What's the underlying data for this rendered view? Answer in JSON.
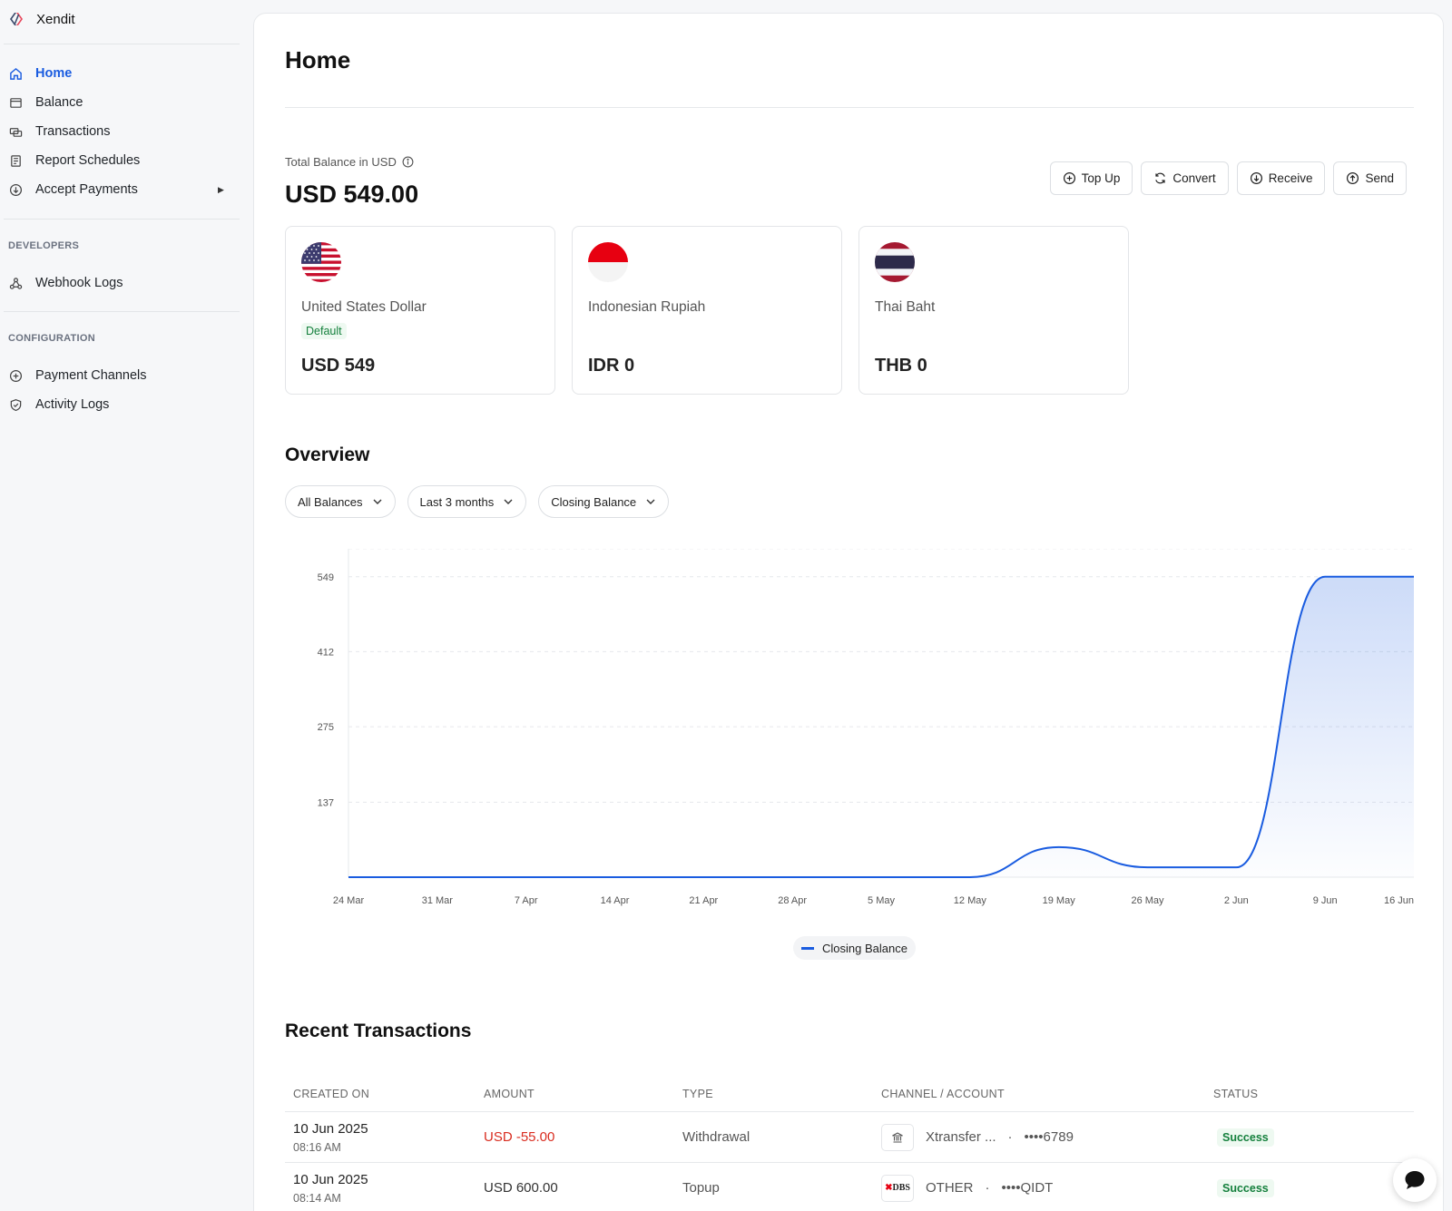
{
  "sidebar": {
    "brand": "Xendit",
    "items": [
      {
        "label": "Home",
        "icon": "home-icon",
        "active": true
      },
      {
        "label": "Balance",
        "icon": "wallet-icon"
      },
      {
        "label": "Transactions",
        "icon": "transactions-icon"
      },
      {
        "label": "Report Schedules",
        "icon": "report-icon"
      },
      {
        "label": "Accept Payments",
        "icon": "arrow-down-circle-icon"
      }
    ],
    "developers_title": "DEVELOPERS",
    "developers_items": [
      {
        "label": "Webhook Logs",
        "icon": "webhook-icon"
      }
    ],
    "config_title": "CONFIGURATION",
    "config_items": [
      {
        "label": "Payment Channels",
        "icon": "plus-circle-icon"
      },
      {
        "label": "Activity Logs",
        "icon": "shield-check-icon"
      }
    ]
  },
  "page": {
    "title": "Home",
    "balance_label": "Total Balance in USD",
    "balance_value": "USD 549.00"
  },
  "actions": {
    "top_up": "Top Up",
    "convert": "Convert",
    "receive": "Receive",
    "send": "Send"
  },
  "currencies": [
    {
      "name": "United States Dollar",
      "badge": "Default",
      "amount": "USD 549",
      "flag": "us-flag"
    },
    {
      "name": "Indonesian Rupiah",
      "amount": "IDR 0",
      "flag": "id-flag"
    },
    {
      "name": "Thai Baht",
      "amount": "THB 0",
      "flag": "th-flag"
    }
  ],
  "overview": {
    "title": "Overview",
    "filters": [
      "All Balances",
      "Last 3 months",
      "Closing Balance"
    ]
  },
  "chart_data": {
    "type": "area",
    "x": [
      "24 Mar",
      "31 Mar",
      "7 Apr",
      "14 Apr",
      "21 Apr",
      "28 Apr",
      "5 May",
      "12 May",
      "19 May",
      "26 May",
      "2 Jun",
      "9 Jun",
      "16 Jun"
    ],
    "yticks": [
      137,
      275,
      412,
      549
    ],
    "ylim": [
      0,
      600
    ],
    "series": [
      {
        "name": "Closing Balance",
        "values": [
          0,
          0,
          0,
          0,
          0,
          0,
          0,
          0,
          55,
          18,
          18,
          549,
          549
        ],
        "color": "#1a5ce0"
      }
    ],
    "grid": true,
    "legend": "bottom-center"
  },
  "transactions": {
    "title": "Recent Transactions",
    "headers": [
      "CREATED ON",
      "AMOUNT",
      "TYPE",
      "CHANNEL / ACCOUNT",
      "STATUS"
    ],
    "rows": [
      {
        "date": "10 Jun 2025",
        "time": "08:16 AM",
        "amount": "USD -55.00",
        "negative": true,
        "type": "Withdrawal",
        "channel": "Xtransfer ...",
        "account": "••••6789",
        "status": "Success",
        "icon": "bank-icon"
      },
      {
        "date": "10 Jun 2025",
        "time": "08:14 AM",
        "amount": "USD 600.00",
        "negative": false,
        "type": "Topup",
        "channel": "OTHER",
        "account": "••••QIDT",
        "status": "Success",
        "icon": "dbs-logo",
        "icon_text": "DBS"
      }
    ]
  }
}
